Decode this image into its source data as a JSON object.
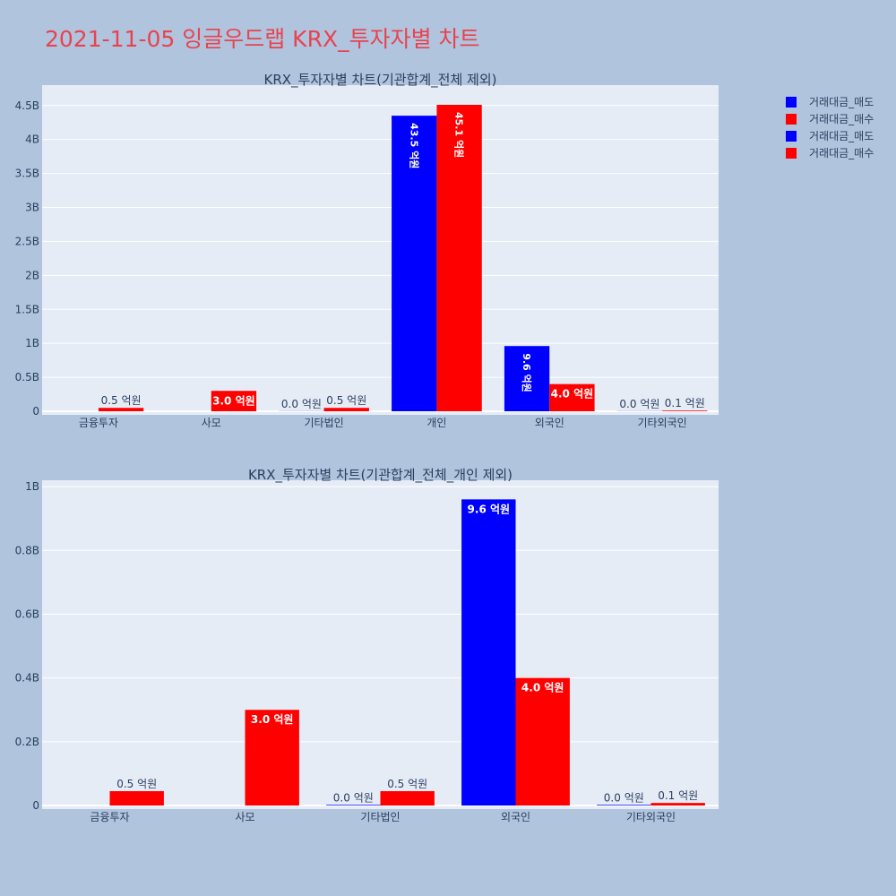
{
  "title": "2021-11-05 잉글우드랩 KRX_투자자별 차트",
  "legend": [
    {
      "label": "거래대금_매도",
      "color": "#0000ff"
    },
    {
      "label": "거래대금_매수",
      "color": "#ff0000"
    },
    {
      "label": "거래대금_매도",
      "color": "#0000ff"
    },
    {
      "label": "거래대금_매수",
      "color": "#ff0000"
    }
  ],
  "chart_data": [
    {
      "type": "bar",
      "title": "KRX_투자자별 차트(기관합계_전체 제외)",
      "categories": [
        "금융투자",
        "사모",
        "기타법인",
        "개인",
        "외국인",
        "기타외국인"
      ],
      "series": [
        {
          "name": "거래대금_매도",
          "color": "#0000ff",
          "values": [
            0,
            0,
            0.002,
            4.35,
            0.96,
            0.002
          ],
          "labels": [
            "",
            "",
            "0.0 억원",
            "43.5 억원",
            "9.6 억원",
            "0.0 억원"
          ]
        },
        {
          "name": "거래대금_매수",
          "color": "#ff0000",
          "values": [
            0.05,
            0.3,
            0.05,
            4.51,
            0.4,
            0.01
          ],
          "labels": [
            "0.5 억원",
            "3.0 억원",
            "0.5 억원",
            "45.1 억원",
            "4.0 억원",
            "0.1 억원"
          ]
        }
      ],
      "ylim": [
        0,
        4.8
      ],
      "yticks": [
        0,
        0.5,
        1,
        1.5,
        2,
        2.5,
        3,
        3.5,
        4,
        4.5
      ],
      "ytick_labels": [
        "0",
        "0.5B",
        "1B",
        "1.5B",
        "2B",
        "2.5B",
        "3B",
        "3.5B",
        "4B",
        "4.5B"
      ]
    },
    {
      "type": "bar",
      "title": "KRX_투자자별 차트(기관합계_전체_개인 제외)",
      "categories": [
        "금융투자",
        "사모",
        "기타법인",
        "외국인",
        "기타외국인"
      ],
      "series": [
        {
          "name": "거래대금_매도",
          "color": "#0000ff",
          "values": [
            0,
            0,
            0.002,
            0.96,
            0.002
          ],
          "labels": [
            "",
            "",
            "0.0 억원",
            "9.6 억원",
            "0.0 억원"
          ]
        },
        {
          "name": "거래대금_매수",
          "color": "#ff0000",
          "values": [
            0.045,
            0.3,
            0.045,
            0.4,
            0.008
          ],
          "labels": [
            "0.5 억원",
            "3.0 억원",
            "0.5 억원",
            "4.0 억원",
            "0.1 억원"
          ]
        }
      ],
      "ylim": [
        0,
        1.02
      ],
      "yticks": [
        0,
        0.2,
        0.4,
        0.6,
        0.8,
        1
      ],
      "ytick_labels": [
        "0",
        "0.2B",
        "0.4B",
        "0.6B",
        "0.8B",
        "1B"
      ]
    }
  ]
}
